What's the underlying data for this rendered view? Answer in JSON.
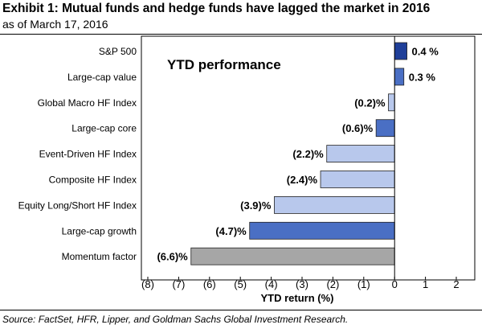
{
  "title": "Exhibit 1: Mutual funds and hedge funds have lagged the market in 2016",
  "subtitle": "as of March 17, 2016",
  "source": "Source: FactSet, HFR, Lipper, and Goldman Sachs Global Investment Research.",
  "chart_data": {
    "type": "bar",
    "orientation": "horizontal",
    "annotation": "YTD performance",
    "xlabel": "YTD return (%)",
    "xlim": [
      -8,
      2
    ],
    "xticks": [
      -8,
      -7,
      -6,
      -5,
      -4,
      -3,
      -2,
      -1,
      0,
      1,
      2
    ],
    "xtick_labels": [
      "(8)",
      "(7)",
      "(6)",
      "(5)",
      "(4)",
      "(3)",
      "(2)",
      "(1)",
      "0",
      "1",
      "2"
    ],
    "grid": false,
    "categories": [
      "S&P 500",
      "Large-cap value",
      "Global Macro HF Index",
      "Large-cap core",
      "Event-Driven HF Index",
      "Composite HF Index",
      "Equity Long/Short HF Index",
      "Large-cap growth",
      "Momentum factor"
    ],
    "values": [
      0.4,
      0.3,
      -0.2,
      -0.6,
      -2.2,
      -2.4,
      -3.9,
      -4.7,
      -6.6
    ],
    "value_labels": [
      "0.4 %",
      "0.3 %",
      "(0.2)%",
      "(0.6)%",
      "(2.2)%",
      "(2.4)%",
      "(3.9)%",
      "(4.7)%",
      "(6.6)%"
    ],
    "colors": [
      "#1f3f99",
      "#4a6fc4",
      "#b8c8ec",
      "#4a6fc4",
      "#b8c8ec",
      "#b8c8ec",
      "#b8c8ec",
      "#4a6fc4",
      "#a6a6a6"
    ]
  }
}
